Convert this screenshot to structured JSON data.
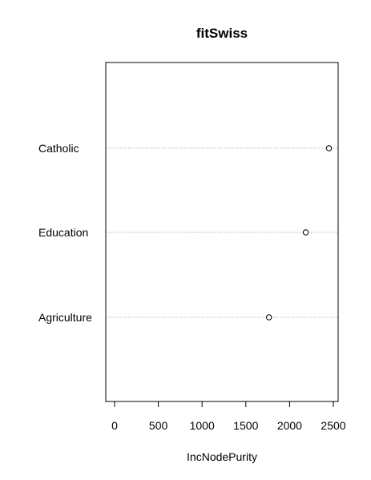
{
  "chart_data": {
    "type": "scatter",
    "title": "fitSwiss",
    "xlabel": "IncNodePurity",
    "ylabel": "",
    "categories": [
      "Catholic",
      "Education",
      "Agriculture"
    ],
    "values": [
      2450,
      2185,
      1765
    ],
    "xlim": [
      -100,
      2560
    ],
    "xticks": [
      0,
      500,
      1000,
      1500,
      2000,
      2500
    ],
    "grid": "dotted horizontal per category"
  }
}
